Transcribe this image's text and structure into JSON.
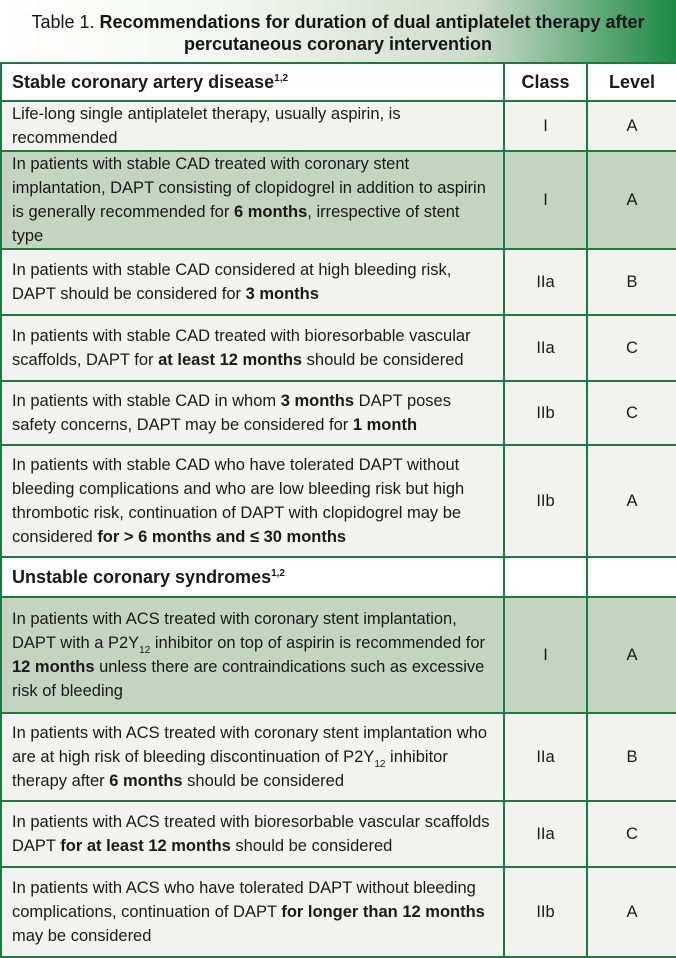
{
  "caption": {
    "prefix": "Table 1. ",
    "title": "Recommendations for duration of dual antiplatelet therapy after percutaneous coronary intervention"
  },
  "header": {
    "section": "Stable coronary artery disease",
    "section_sup": "1,2",
    "class": "Class",
    "level": "Level"
  },
  "stable_rows": [
    {
      "parts": [
        {
          "t": "Life-long single antiplatelet therapy, usually aspirin, is recommended"
        }
      ],
      "class": "I",
      "level": "A",
      "shade": "l",
      "h": 48
    },
    {
      "parts": [
        {
          "t": "In patients with stable CAD treated with coronary stent implantation, DAPT consisting of clopidogrel in addition to aspirin is generally recommended for "
        },
        {
          "t": "6 months",
          "b": true
        },
        {
          "t": ", irrespective of stent type"
        }
      ],
      "class": "I",
      "level": "A",
      "shade": "g",
      "h": 88
    },
    {
      "parts": [
        {
          "t": "In patients with stable CAD considered at high bleeding risk, DAPT should be considered for "
        },
        {
          "t": "3 months",
          "b": true
        }
      ],
      "class": "IIa",
      "level": "B",
      "shade": "l",
      "h": 66
    },
    {
      "parts": [
        {
          "t": "In patients with stable CAD treated with bioresorbable vascular scaffolds, DAPT for "
        },
        {
          "t": "at least 12 months",
          "b": true
        },
        {
          "t": " should be considered"
        }
      ],
      "class": "IIa",
      "level": "C",
      "shade": "l",
      "h": 66
    },
    {
      "parts": [
        {
          "t": "In patients with stable CAD in whom "
        },
        {
          "t": "3 months",
          "b": true
        },
        {
          "t": " DAPT poses safety concerns, DAPT may be considered for "
        },
        {
          "t": "1 month",
          "b": true
        }
      ],
      "class": "IIb",
      "level": "C",
      "shade": "l",
      "h": 64
    },
    {
      "parts": [
        {
          "t": "In patients with stable CAD who have tolerated DAPT without bleeding complications and who are low bleeding risk but high thrombotic risk, continuation of DAPT with clopidogrel may be considered "
        },
        {
          "t": "for > 6 months and ≤ 30 months",
          "b": true
        }
      ],
      "class": "IIb",
      "level": "A",
      "shade": "l",
      "h": 112
    }
  ],
  "unstable_header": {
    "section": "Unstable coronary syndromes",
    "section_sup": "1,2"
  },
  "unstable_rows": [
    {
      "parts": [
        {
          "t": "In patients with ACS treated with coronary stent implantation, DAPT with a P2Y"
        },
        {
          "t": "12",
          "sub": true
        },
        {
          "t": " inhibitor on top of aspirin is recommended for "
        },
        {
          "t": "12 months",
          "b": true
        },
        {
          "t": " unless there are contraindications such as excessive risk of bleeding"
        }
      ],
      "class": "I",
      "level": "A",
      "shade": "g",
      "h": 116
    },
    {
      "parts": [
        {
          "t": "In patients with ACS treated with coronary stent implantation who are at high risk of bleeding discontinuation of P2Y"
        },
        {
          "t": "12",
          "sub": true
        },
        {
          "t": " inhibitor therapy after "
        },
        {
          "t": "6 months",
          "b": true
        },
        {
          "t": " should be considered"
        }
      ],
      "class": "IIa",
      "level": "B",
      "shade": "l",
      "h": 88
    },
    {
      "parts": [
        {
          "t": "In patients with ACS treated with bioresorbable vascular scaffolds DAPT "
        },
        {
          "t": "for at least 12 months",
          "b": true
        },
        {
          "t": " should be considered"
        }
      ],
      "class": "IIa",
      "level": "C",
      "shade": "l",
      "h": 66
    },
    {
      "parts": [
        {
          "t": "In patients with ACS who have tolerated DAPT without bleeding complications, continuation of DAPT "
        },
        {
          "t": "for longer than 12 months",
          "b": true
        },
        {
          "t": " may be considered"
        }
      ],
      "class": "IIb",
      "level": "A",
      "shade": "l",
      "h": 90
    }
  ]
}
